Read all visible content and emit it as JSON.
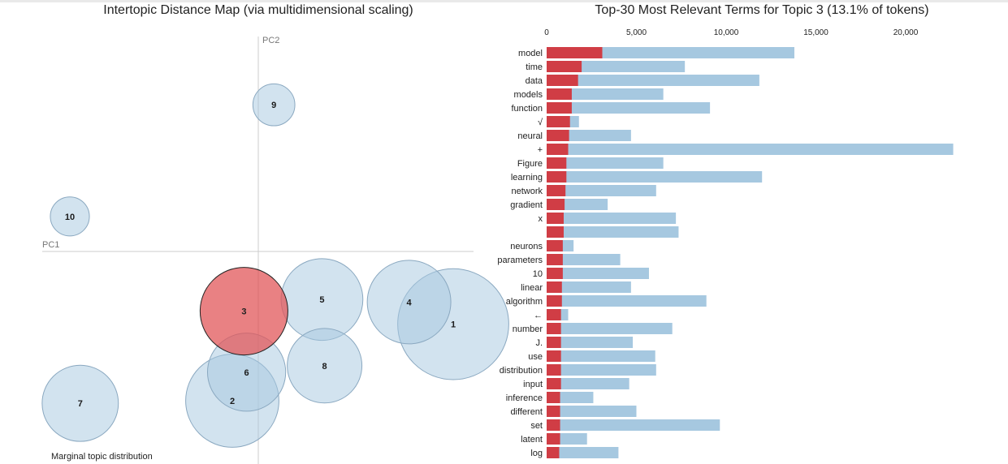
{
  "left_panel": {
    "title": "Intertopic Distance Map (via multidimensional scaling)",
    "pc1_label": "PC1",
    "pc2_label": "PC2",
    "legend_label": "Marginal topic distribution"
  },
  "right_panel": {
    "title": "Top-30 Most Relevant Terms for Topic 3 (13.1% of tokens)"
  },
  "colors": {
    "topic_fill": "#a6c8e0",
    "topic_stroke": "#8aa8c0",
    "selected_fill": "#e15759",
    "selected_stroke": "#222222",
    "bar_overall": "#a6c8e0",
    "bar_topic": "#d03d45"
  },
  "chart_data": [
    {
      "type": "scatter",
      "title": "Intertopic Distance Map (via multidimensional scaling)",
      "xlabel": "PC1",
      "ylabel": "PC2",
      "selected_topic": "3",
      "topics": [
        {
          "label": "1",
          "x": 0.15,
          "y": -0.056,
          "size": 21.0
        },
        {
          "label": "2",
          "x": -0.02,
          "y": -0.115,
          "size": 14.8
        },
        {
          "label": "3",
          "x": -0.011,
          "y": -0.046,
          "size": 13.1
        },
        {
          "label": "4",
          "x": 0.116,
          "y": -0.039,
          "size": 11.9
        },
        {
          "label": "5",
          "x": 0.049,
          "y": -0.037,
          "size": 11.4
        },
        {
          "label": "6",
          "x": -0.009,
          "y": -0.093,
          "size": 10.4
        },
        {
          "label": "7",
          "x": -0.137,
          "y": -0.117,
          "size": 9.9
        },
        {
          "label": "8",
          "x": 0.051,
          "y": -0.088,
          "size": 9.5
        },
        {
          "label": "9",
          "x": 0.012,
          "y": 0.113,
          "size": 3.0
        },
        {
          "label": "10",
          "x": -0.145,
          "y": 0.027,
          "size": 2.6
        }
      ]
    },
    {
      "type": "bar",
      "title": "Top-30 Most Relevant Terms for Topic 3 (13.1% of tokens)",
      "xlim": [
        0,
        22000
      ],
      "xticks": [
        0,
        5000,
        10000,
        15000,
        20000
      ],
      "xtick_labels": [
        "0",
        "5,000",
        "10,000",
        "15,000",
        "20,000"
      ],
      "categories": [
        "model",
        "time",
        "data",
        "models",
        "function",
        "√",
        "neural",
        "+",
        "Figure",
        "learning",
        "network",
        "gradient",
        "x",
        "",
        "neurons",
        "parameters",
        "10",
        "linear",
        "algorithm",
        "←",
        "number",
        "J.",
        "use",
        "distribution",
        "input",
        "inference",
        "different",
        "set",
        "latent",
        "log"
      ],
      "series": [
        {
          "name": "overall",
          "values": [
            13800,
            7700,
            11850,
            6500,
            9100,
            1800,
            4700,
            22650,
            6500,
            12000,
            6100,
            3400,
            7200,
            7350,
            1500,
            4100,
            5700,
            4700,
            8900,
            1200,
            7000,
            4800,
            6050,
            6100,
            4600,
            2600,
            5000,
            9650,
            2250,
            4000
          ]
        },
        {
          "name": "topic",
          "values": [
            3100,
            1950,
            1750,
            1400,
            1400,
            1300,
            1250,
            1200,
            1100,
            1100,
            1050,
            1000,
            950,
            950,
            900,
            900,
            900,
            850,
            850,
            800,
            800,
            800,
            800,
            800,
            800,
            750,
            750,
            750,
            750,
            700
          ]
        }
      ]
    }
  ]
}
